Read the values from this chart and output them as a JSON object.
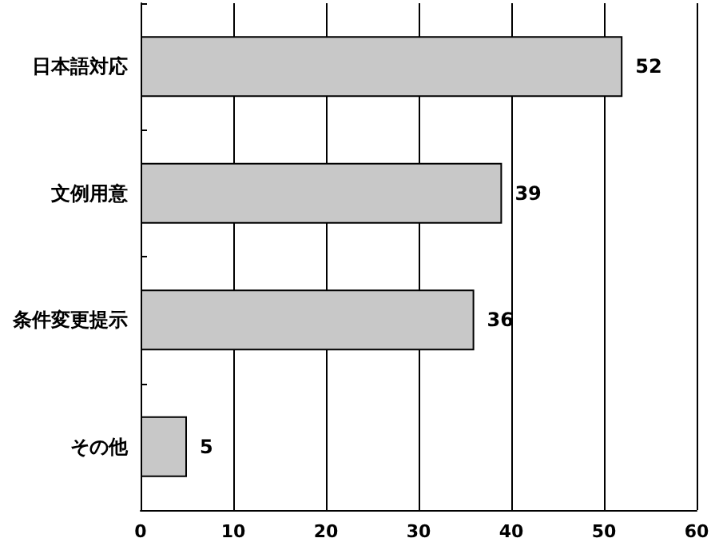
{
  "chart_data": {
    "type": "bar",
    "orientation": "horizontal",
    "categories": [
      "日本語対応",
      "文例用意",
      "条件変更提示",
      "その他"
    ],
    "values": [
      52,
      39,
      36,
      5
    ],
    "color": "#c8c8c8",
    "xlim": [
      0,
      60
    ],
    "xticks": [
      0,
      10,
      20,
      30,
      40,
      50,
      60
    ],
    "grid": "x",
    "data_labels": true
  }
}
